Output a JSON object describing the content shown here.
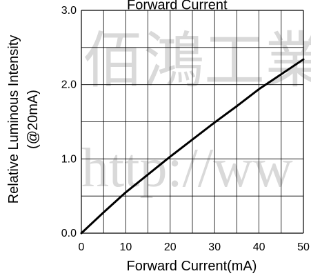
{
  "chart_data": {
    "type": "line",
    "title": "Forward Current",
    "xlabel": "Forward Current(mA)",
    "ylabel_lines": [
      "Relative Luminous Intensity",
      "(@20mA)"
    ],
    "xlim": [
      0,
      50
    ],
    "ylim": [
      0,
      3
    ],
    "grid": true,
    "x_ticks": [
      "0",
      "10",
      "20",
      "30",
      "40",
      "50"
    ],
    "y_ticks": [
      "0.0",
      "1.0",
      "2.0",
      "3.0"
    ],
    "series": [
      {
        "x": [
          0,
          5,
          10,
          15,
          20,
          25,
          30,
          35,
          40,
          45,
          50
        ],
        "y": [
          0.0,
          0.28,
          0.55,
          0.79,
          1.03,
          1.26,
          1.49,
          1.71,
          1.94,
          2.14,
          2.34
        ]
      }
    ]
  },
  "watermark": {
    "line1": "佰鴻工業",
    "line2": "http://ww"
  }
}
